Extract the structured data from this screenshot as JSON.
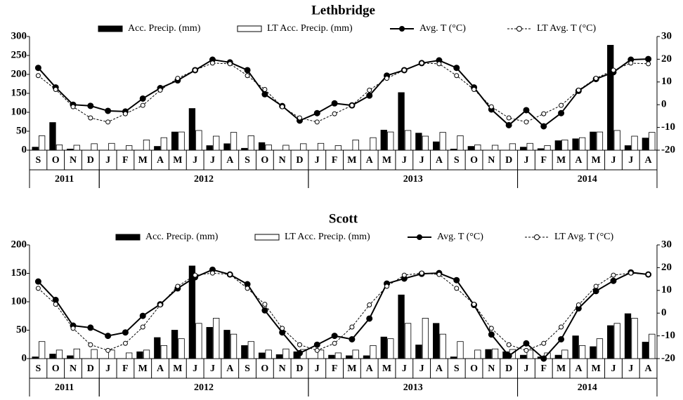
{
  "chart_data": [
    {
      "type": "bar-line",
      "title": "Lethbridge",
      "categories": [
        "S",
        "O",
        "N",
        "D",
        "J",
        "F",
        "M",
        "A",
        "M",
        "J",
        "J",
        "A",
        "S",
        "O",
        "N",
        "D",
        "J",
        "F",
        "M",
        "A",
        "M",
        "J",
        "J",
        "A",
        "S",
        "O",
        "N",
        "D",
        "J",
        "F",
        "M",
        "A",
        "M",
        "J",
        "J",
        "A"
      ],
      "groups": [
        {
          "label": "2011",
          "count": 4
        },
        {
          "label": "2012",
          "count": 12
        },
        {
          "label": "2013",
          "count": 12
        },
        {
          "label": "2014",
          "count": 8
        }
      ],
      "ylim": [
        0,
        300
      ],
      "yticks": [
        0,
        50,
        100,
        150,
        200,
        250,
        300
      ],
      "y2lim": [
        -20,
        30
      ],
      "y2ticks": [
        -20,
        -10,
        0,
        10,
        20,
        30
      ],
      "series": [
        {
          "name": "Acc. Precip. (mm)",
          "kind": "bar",
          "color": "#000000",
          "values": [
            8,
            73,
            3,
            0,
            0,
            0,
            0,
            10,
            48,
            110,
            12,
            17,
            5,
            20,
            0,
            0,
            0,
            0,
            0,
            0,
            53,
            152,
            45,
            22,
            3,
            10,
            0,
            0,
            8,
            4,
            25,
            30,
            48,
            277,
            12,
            32
          ]
        },
        {
          "name": "LT Acc. Precip. (mm)",
          "kind": "bar",
          "color": "#ffffff",
          "values": [
            38,
            14,
            13,
            17,
            18,
            12,
            27,
            33,
            48,
            52,
            37,
            47,
            38,
            14,
            13,
            17,
            18,
            12,
            27,
            33,
            48,
            52,
            37,
            47,
            38,
            14,
            13,
            17,
            18,
            12,
            27,
            33,
            48,
            52,
            37,
            47
          ]
        },
        {
          "name": "Avg. T (°C)",
          "kind": "line",
          "axis": "y2",
          "color": "#000000",
          "marker": "filled",
          "values": [
            16.2,
            7.6,
            0,
            -0.5,
            -2.7,
            -3,
            2.7,
            7.3,
            10.7,
            15.2,
            19.8,
            18.6,
            15.2,
            4.6,
            -0.6,
            -7,
            -3.7,
            0.6,
            -0.3,
            4,
            12.8,
            15.2,
            18.3,
            19.5,
            16.2,
            7.6,
            -2.1,
            -9,
            -2.4,
            -9.5,
            -3.7,
            6.1,
            11.3,
            14.3,
            19.8,
            20.1
          ]
        },
        {
          "name": "LT Avg. T (°C)",
          "kind": "line",
          "axis": "y2",
          "color": "#000000",
          "marker": "open",
          "dashed": true,
          "values": [
            12.8,
            6.7,
            -0.9,
            -5.8,
            -7.6,
            -4,
            -0.3,
            6.4,
            11.6,
            15.2,
            18.3,
            18,
            12.8,
            6.7,
            -0.9,
            -5.8,
            -7.6,
            -4,
            -0.3,
            6.4,
            11.6,
            15.2,
            18.3,
            18,
            12.8,
            6.7,
            -0.9,
            -5.8,
            -7.6,
            -4,
            -0.3,
            6.4,
            11.6,
            15.2,
            18.3,
            18
          ]
        }
      ]
    },
    {
      "type": "bar-line",
      "title": "Scott",
      "categories": [
        "S",
        "O",
        "N",
        "D",
        "J",
        "F",
        "M",
        "A",
        "M",
        "J",
        "J",
        "A",
        "S",
        "O",
        "N",
        "D",
        "J",
        "F",
        "M",
        "A",
        "M",
        "J",
        "J",
        "A",
        "S",
        "O",
        "N",
        "D",
        "J",
        "F",
        "M",
        "A",
        "M",
        "J",
        "J",
        "A"
      ],
      "groups": [
        {
          "label": "2011",
          "count": 4
        },
        {
          "label": "2012",
          "count": 12
        },
        {
          "label": "2013",
          "count": 12
        },
        {
          "label": "2014",
          "count": 8
        }
      ],
      "ylim": [
        0,
        200
      ],
      "yticks": [
        0,
        50,
        100,
        150,
        200
      ],
      "y2lim": [
        -20,
        30
      ],
      "y2ticks": [
        -20,
        -10,
        0,
        10,
        20,
        30
      ],
      "series": [
        {
          "name": "Acc. Precip. (mm)",
          "kind": "bar",
          "color": "#000000",
          "values": [
            3,
            8,
            5,
            0,
            0,
            0,
            12,
            37,
            50,
            163,
            55,
            50,
            23,
            10,
            7,
            12,
            0,
            6,
            5,
            5,
            38,
            112,
            24,
            62,
            3,
            0,
            16,
            12,
            6,
            3,
            6,
            40,
            21,
            58,
            79,
            29
          ]
        },
        {
          "name": "LT Acc. Precip. (mm)",
          "kind": "bar",
          "color": "#ffffff",
          "values": [
            30,
            15,
            17,
            16,
            15,
            10,
            15,
            23,
            35,
            62,
            71,
            43,
            30,
            15,
            17,
            16,
            15,
            10,
            15,
            23,
            35,
            62,
            71,
            43,
            30,
            15,
            17,
            16,
            15,
            10,
            15,
            23,
            35,
            62,
            71,
            43
          ]
        },
        {
          "name": "Avg. T (°C)",
          "kind": "line",
          "axis": "y2",
          "color": "#000000",
          "marker": "filled",
          "values": [
            13.9,
            5.8,
            -5.5,
            -6.4,
            -10,
            -8.5,
            -1.2,
            3.9,
            10.9,
            15.8,
            19.1,
            17,
            12.7,
            1.2,
            -8.5,
            -17.6,
            -13.9,
            -10,
            -11.5,
            -2.4,
            13,
            15.2,
            17.3,
            17.6,
            14.5,
            3.6,
            -9.4,
            -18.8,
            -13.3,
            -20,
            -11.5,
            2.1,
            9.7,
            14.2,
            17.9,
            17
          ]
        },
        {
          "name": "LT Avg. T (°C)",
          "kind": "line",
          "axis": "y2",
          "color": "#000000",
          "marker": "open",
          "dashed": true,
          "values": [
            10.9,
            3.9,
            -6.7,
            -13.9,
            -16.4,
            -13.3,
            -6.1,
            3.6,
            11.8,
            16.7,
            17.6,
            17,
            10.9,
            3.9,
            -6.7,
            -13.9,
            -16.4,
            -13.3,
            -6.1,
            3.6,
            11.8,
            16.7,
            17.6,
            17,
            10.9,
            3.9,
            -6.7,
            -13.9,
            -16.4,
            -13.3,
            -6.1,
            3.6,
            11.8,
            16.7,
            17.6,
            17
          ]
        }
      ]
    }
  ]
}
